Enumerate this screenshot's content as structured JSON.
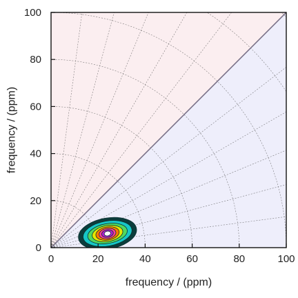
{
  "chart_data": {
    "type": "contour",
    "xlabel": "frequency / (ppm)",
    "ylabel": "frequency / (ppm)",
    "xlim": [
      0,
      100
    ],
    "ylim": [
      0,
      100
    ],
    "xticks": [
      0,
      20,
      40,
      60,
      80,
      100
    ],
    "yticks": [
      0,
      20,
      40,
      60,
      80,
      100
    ],
    "xtick_labels": [
      "0",
      "20",
      "40",
      "60",
      "80",
      "100"
    ],
    "ytick_labels": [
      "0",
      "20",
      "40",
      "60",
      "80",
      "100"
    ],
    "grid": "polar dashed rays and arcs",
    "regions": [
      {
        "side": "above-diagonal",
        "color": "#fbeef0"
      },
      {
        "side": "below-diagonal",
        "color": "#eeeefb"
      }
    ],
    "diagonal": {
      "from": [
        0,
        0
      ],
      "to": [
        100,
        100
      ],
      "color": "#7a7288"
    },
    "polar_grid": {
      "ray_angles_deg": [
        0,
        7.5,
        15,
        22.5,
        30,
        37.5,
        45,
        52.5,
        60,
        67.5,
        75,
        82.5,
        90
      ],
      "arc_radii": [
        20,
        40,
        60,
        80,
        100,
        120,
        140
      ]
    },
    "peak": {
      "center": [
        24,
        6
      ],
      "rotation_deg": -10,
      "levels": [
        {
          "rx": 12.5,
          "ry": 6.6,
          "color": "#0c3d3c"
        },
        {
          "rx": 10.5,
          "ry": 5.3,
          "color": "#16c7c7"
        },
        {
          "rx": 8.5,
          "ry": 4.2,
          "color": "#50d860"
        },
        {
          "rx": 6.6,
          "ry": 3.4,
          "color": "#e6e600"
        },
        {
          "rx": 5.0,
          "ry": 2.8,
          "color": "#ff7a00"
        },
        {
          "rx": 3.6,
          "ry": 2.2,
          "color": "#ff3f9c"
        },
        {
          "rx": 2.5,
          "ry": 1.6,
          "color": "#b020d0"
        },
        {
          "rx": 1.4,
          "ry": 1.0,
          "color": "#ffffff"
        }
      ]
    }
  }
}
